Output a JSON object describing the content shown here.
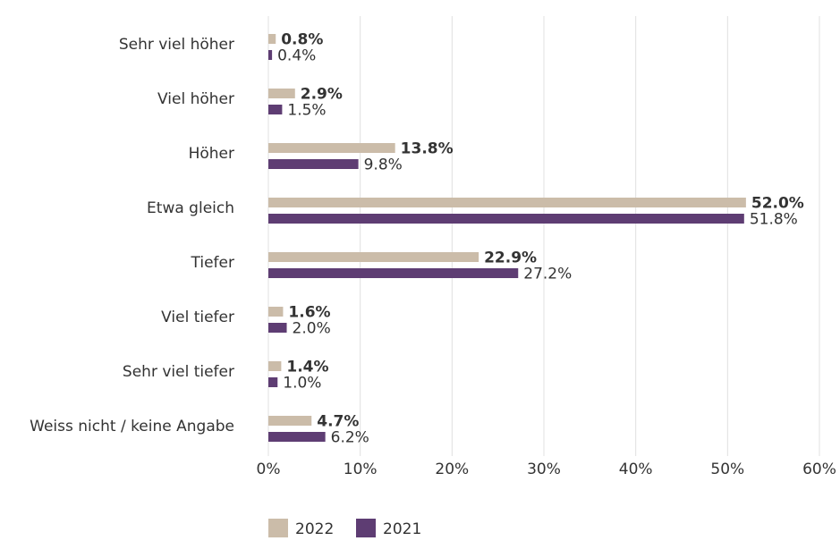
{
  "chart_data": {
    "type": "bar",
    "orientation": "horizontal",
    "categories": [
      "Sehr viel höher",
      "Viel höher",
      "Höher",
      "Etwa gleich",
      "Tiefer",
      "Viel tiefer",
      "Sehr viel tiefer",
      "Weiss nicht / keine Angabe"
    ],
    "series": [
      {
        "name": "2022",
        "color": "#cbbca9",
        "values": [
          0.8,
          2.9,
          13.8,
          52.0,
          22.9,
          1.6,
          1.4,
          4.7
        ],
        "value_labels": [
          "0.8%",
          "2.9%",
          "13.8%",
          "52.0%",
          "22.9%",
          "1.6%",
          "1.4%",
          "4.7%"
        ]
      },
      {
        "name": "2021",
        "color": "#5e3d73",
        "values": [
          0.4,
          1.5,
          9.8,
          51.8,
          27.2,
          2.0,
          1.0,
          6.2
        ],
        "value_labels": [
          "0.4%",
          "1.5%",
          "9.8%",
          "51.8%",
          "27.2%",
          "2.0%",
          "1.0%",
          "6.2%"
        ]
      }
    ],
    "xlim": [
      0,
      60
    ],
    "xticks": [
      {
        "value": 0,
        "label": "0%"
      },
      {
        "value": 10,
        "label": "10%"
      },
      {
        "value": 20,
        "label": "20%"
      },
      {
        "value": 30,
        "label": "30%"
      },
      {
        "value": 40,
        "label": "40%"
      },
      {
        "value": 50,
        "label": "50%"
      },
      {
        "value": 60,
        "label": "60%"
      }
    ],
    "grid": true,
    "legend": "bottom"
  }
}
